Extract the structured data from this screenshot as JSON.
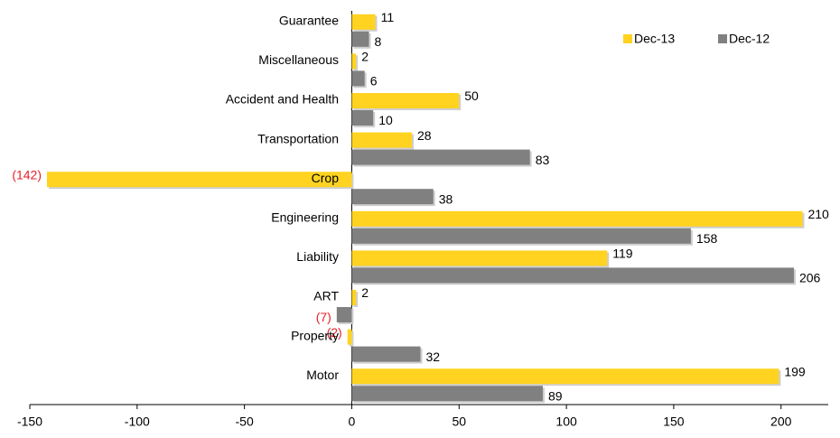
{
  "chart_data": {
    "type": "bar",
    "orientation": "horizontal",
    "categories": [
      "Guarantee",
      "Miscellaneous",
      "Accident and Health",
      "Transportation",
      "Crop",
      "Engineering",
      "Liability",
      "ART",
      "Property",
      "Motor"
    ],
    "series": [
      {
        "name": "Dec-13",
        "color": "#FFD320",
        "values": [
          11,
          2,
          50,
          28,
          -142,
          210,
          119,
          2,
          -2,
          199
        ],
        "value_labels": [
          "11",
          "2",
          "50",
          "28",
          "(142)",
          "210",
          "119",
          "2",
          "(2)",
          "199"
        ]
      },
      {
        "name": "Dec-12",
        "color": "#808080",
        "values": [
          8,
          6,
          10,
          83,
          38,
          158,
          206,
          -7,
          32,
          89
        ],
        "value_labels": [
          "8",
          "6",
          "10",
          "83",
          "38",
          "158",
          "206",
          "(7)",
          "32",
          "89"
        ]
      }
    ],
    "xlim": [
      -150,
      222
    ],
    "xticks": [
      -150,
      -100,
      -50,
      0,
      50,
      100,
      150,
      200
    ],
    "negative_label_color": "#e8202a",
    "legend": "top-right"
  }
}
